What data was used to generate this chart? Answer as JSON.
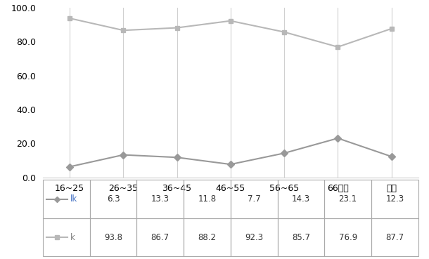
{
  "categories": [
    "16~25",
    "26~35",
    "36~45",
    "46~55",
    "56~65",
    "66이상",
    "전체"
  ],
  "series": [
    {
      "label": "lk",
      "values": [
        6.3,
        13.3,
        11.8,
        7.7,
        14.3,
        23.1,
        12.3
      ],
      "color": "#999999",
      "marker": "D",
      "markersize": 5
    },
    {
      "label": "k",
      "values": [
        93.8,
        86.7,
        88.2,
        92.3,
        85.7,
        76.9,
        87.7
      ],
      "color": "#b8b8b8",
      "marker": "s",
      "markersize": 5
    }
  ],
  "ylim": [
    0,
    100
  ],
  "yticks": [
    0.0,
    20.0,
    40.0,
    60.0,
    80.0,
    100.0
  ],
  "background_color": "#ffffff",
  "grid_color": "#d0d0d0",
  "legend_label_lk_color": "#4472c4",
  "legend_label_k_color": "#808080",
  "figsize": [
    6.1,
    3.69
  ],
  "dpi": 100,
  "table_border_color": "#aaaaaa",
  "table_text_color": "#333333",
  "table_fontsize": 8.5
}
